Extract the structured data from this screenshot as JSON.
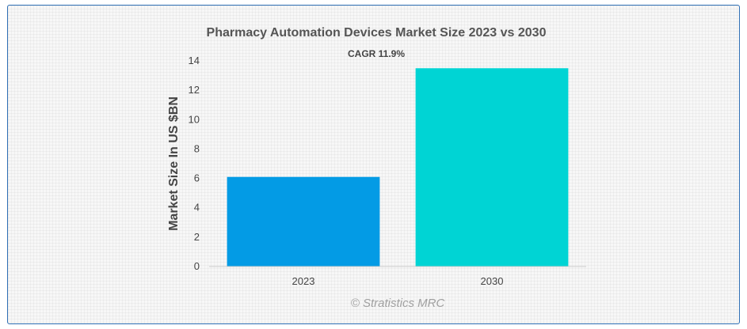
{
  "chart_data": {
    "type": "bar",
    "title": "Pharmacy Automation Devices Market Size 2023 vs 2030",
    "subtitle": "CAGR 11.9%",
    "ylabel": "Market Size In US $BN",
    "xlabel": "",
    "categories": [
      "2023",
      "2030"
    ],
    "values": [
      6.1,
      13.5
    ],
    "colors": [
      "#039be5",
      "#00d4d4"
    ],
    "ylim": [
      0,
      14
    ],
    "yticks": [
      0,
      2,
      4,
      6,
      8,
      10,
      12,
      14
    ],
    "grid": false,
    "legend": "none"
  },
  "credit": "© Stratistics MRC"
}
